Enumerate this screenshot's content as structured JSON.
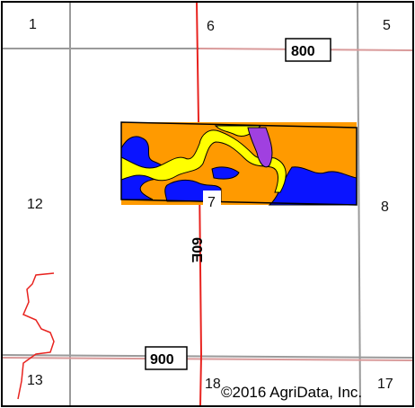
{
  "section_numbers": {
    "top_left": "1",
    "top_middle": "6",
    "top_right": "5",
    "middle_left": "12",
    "field_corner": "7",
    "middle_right": "8",
    "bottom_left": "13",
    "bottom_middle": "18",
    "bottom_right": "17"
  },
  "road_labels": {
    "top": "800",
    "bottom": "900",
    "vertical": "60E"
  },
  "copyright": "©2016 AgriData, Inc.",
  "colors": {
    "section_line": "#9a9a9a",
    "road_line": "#e8231f",
    "road_pink": "#d99a9a",
    "soil_orange": "#ff9a00",
    "soil_blue": "#0a14ff",
    "soil_yellow": "#ffff00",
    "soil_purple": "#a040e0"
  }
}
